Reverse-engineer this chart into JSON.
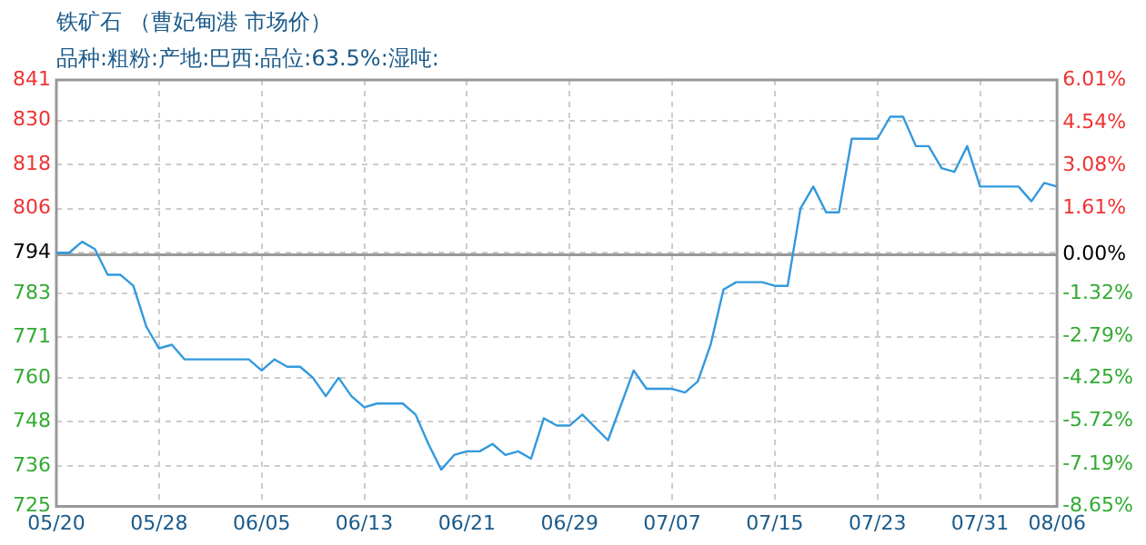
{
  "chart_data": {
    "type": "line",
    "title": "铁矿石 （曹妃甸港 市场价）",
    "subtitle": "品种:粗粉:产地:巴西:品位:63.5%:湿吨:",
    "x": [
      "--05-20",
      "--05-21",
      "--05-22",
      "--05-23",
      "--05-24",
      "--05-25",
      "--05-26",
      "--05-27",
      "--05-28",
      "--05-29",
      "--05-30",
      "--06-04",
      "--06-05",
      "--06-06",
      "--06-07",
      "--06-08",
      "--06-09",
      "--06-10",
      "--06-11",
      "--06-12",
      "--06-13",
      "--06-14",
      "--06-16",
      "--06-17",
      "--06-18",
      "--06-19",
      "--06-20",
      "--06-21",
      "--06-22",
      "--06-23",
      "--06-24",
      "--06-25",
      "--06-26",
      "--06-27",
      "--06-28",
      "--06-29",
      "--06-30",
      "--07-02",
      "--07-04",
      "--07-05",
      "--07-07",
      "--07-08",
      "--07-09",
      "--07-10",
      "--07-11",
      "--07-12",
      "--07-14",
      "--07-15",
      "--07-16",
      "--07-17",
      "--07-18",
      "--07-19",
      "--07-20",
      "--07-21",
      "--07-23",
      "--07-24",
      "--07-25",
      "--07-26",
      "--07-27",
      "--07-28",
      "--07-29",
      "--07-30",
      "--07-31",
      "--08-03",
      "--08-04",
      "--08-05",
      "--08-06"
    ],
    "series": [
      {
        "color": "#3399dd",
        "values": [
          794,
          794,
          797,
          795,
          788,
          788,
          785,
          774,
          768,
          769,
          765,
          765,
          762,
          765,
          763,
          763,
          760,
          755,
          760,
          755,
          752,
          753,
          753,
          750,
          742,
          735,
          739,
          740,
          740,
          742,
          739,
          740,
          738,
          749,
          747,
          747,
          750,
          743,
          762,
          757,
          757,
          756,
          759,
          769,
          784,
          786,
          786,
          785,
          785,
          806,
          812,
          805,
          805,
          825,
          825,
          831,
          831,
          823,
          823,
          817,
          816,
          823,
          812,
          812,
          808,
          813,
          812
        ]
      }
    ],
    "xlim": [
      "--05-20",
      "--08-06"
    ],
    "xticks": [
      {
        "value": "--05-20",
        "label": "05/20"
      },
      {
        "value": "--05-28",
        "label": "05/28"
      },
      {
        "value": "--06-05",
        "label": "06/05"
      },
      {
        "value": "--06-13",
        "label": "06/13"
      },
      {
        "value": "--06-21",
        "label": "06/21"
      },
      {
        "value": "--06-29",
        "label": "06/29"
      },
      {
        "value": "--07-07",
        "label": "07/07"
      },
      {
        "value": "--07-15",
        "label": "07/15"
      },
      {
        "value": "--07-23",
        "label": "07/23"
      },
      {
        "value": "--07-31",
        "label": "07/31"
      },
      {
        "value": "--08-06",
        "label": "08/06"
      }
    ],
    "ylim": [
      725,
      841
    ],
    "yticks": [
      725,
      736,
      748,
      760,
      771,
      783,
      794,
      806,
      818,
      830,
      841
    ],
    "y2lim": [
      -8.65,
      6.01
    ],
    "y2ticks": [
      {
        "value": -8.65,
        "label": "-8.65%"
      },
      {
        "value": -7.19,
        "label": "-7.19%"
      },
      {
        "value": -5.72,
        "label": "-5.72%"
      },
      {
        "value": -4.25,
        "label": "-4.25%"
      },
      {
        "value": -2.79,
        "label": "-2.79%"
      },
      {
        "value": -1.32,
        "label": "-1.32%"
      },
      {
        "value": 0,
        "label": "0.00%"
      },
      {
        "value": 1.61,
        "label": "1.61%"
      },
      {
        "value": 3.08,
        "label": "3.08%"
      },
      {
        "value": 4.54,
        "label": "4.54%"
      },
      {
        "value": 6.01,
        "label": "6.01%"
      }
    ],
    "ref_lines": [
      {
        "axis": "y2",
        "value": 0,
        "color": "#999999"
      }
    ],
    "grid": true,
    "legend": false,
    "marker": "none",
    "line_style": "solid"
  }
}
